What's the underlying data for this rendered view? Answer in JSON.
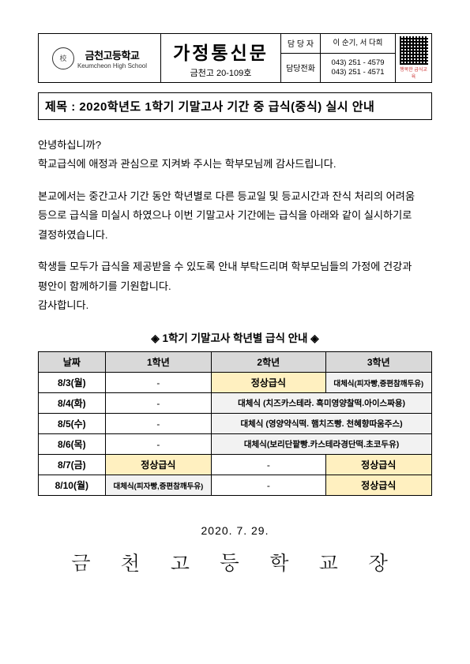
{
  "header": {
    "school_kr": "금천고등학교",
    "school_en": "Keumcheon High School",
    "doc_title": "가정통신문",
    "doc_no": "금천고 20-109호",
    "contact_label1": "담 당 자",
    "contact_val1": "이 순기, 서 다희",
    "contact_label2": "담당전화",
    "contact_val2a": "043) 251 - 4579",
    "contact_val2b": "043) 251 - 4571",
    "qr_caption": "행복한 급식교육"
  },
  "subject": "제목 : 2020학년도 1학기 기말고사 기간 중 급식(중식) 실시 안내",
  "body": {
    "p1a": "안녕하십니까?",
    "p1b": "학교급식에 애정과 관심으로 지켜봐 주시는 학부모님께 감사드립니다.",
    "p2": "본교에서는 중간고사 기간 동안 학년별로 다른 등교일 및 등교시간과 잔식 처리의 어려움 등으로 급식을 미실시 하였으나 이번 기말고사 기간에는 급식을 아래와 같이 실시하기로 결정하였습니다.",
    "p3a": "학생들 모두가 급식을 제공받을 수 있도록 안내 부탁드리며 학부모님들의 가정에 건강과 평안이 함께하기를 기원합니다.",
    "p3b": "감사합니다."
  },
  "table": {
    "caption": "◈   1학기 기말고사 학년별 급식 안내   ◈",
    "headers": [
      "날짜",
      "1학년",
      "2학년",
      "3학년"
    ],
    "col_widths": [
      "17%",
      "27%",
      "29%",
      "27%"
    ],
    "normal_bg": "#fff0c0",
    "alt_bg": "#f2f2f2",
    "rows": [
      {
        "date": "8/3(월)",
        "g1": {
          "text": "-",
          "cls": ""
        },
        "g2": {
          "text": "정상급식",
          "cls": "bg-normal"
        },
        "g3": {
          "text": "대체식(피자빵,증편참깨두유)",
          "cls": "bg-alt-sm"
        }
      },
      {
        "date": "8/4(화)",
        "g1": {
          "text": "-",
          "cls": ""
        },
        "g23": {
          "text": "대체식 (치즈카스테라. 흑미영양찰떡.아이스짜용)",
          "cls": "bg-alt",
          "colspan": 2
        }
      },
      {
        "date": "8/5(수)",
        "g1": {
          "text": "-",
          "cls": ""
        },
        "g23": {
          "text": "대체식 (영양약식떡. 햄치즈빵. 천혜향따움주스)",
          "cls": "bg-alt",
          "colspan": 2
        }
      },
      {
        "date": "8/6(목)",
        "g1": {
          "text": "-",
          "cls": ""
        },
        "g23": {
          "text": "대체식(보리단팥빵.카스테라경단떡.초코두유)",
          "cls": "bg-alt",
          "colspan": 2
        }
      },
      {
        "date": "8/7(금)",
        "g1": {
          "text": "정상급식",
          "cls": "bg-normal"
        },
        "g2": {
          "text": "-",
          "cls": ""
        },
        "g3": {
          "text": "정상급식",
          "cls": "bg-normal"
        }
      },
      {
        "date": "8/10(월)",
        "g1": {
          "text": "대체식(피자빵,증편참깨두유)",
          "cls": "bg-alt-sm"
        },
        "g2": {
          "text": "-",
          "cls": ""
        },
        "g3": {
          "text": "정상급식",
          "cls": "bg-normal"
        }
      }
    ]
  },
  "footer": {
    "date": "2020. 7. 29.",
    "principal": "금 천 고 등 학 교 장"
  }
}
